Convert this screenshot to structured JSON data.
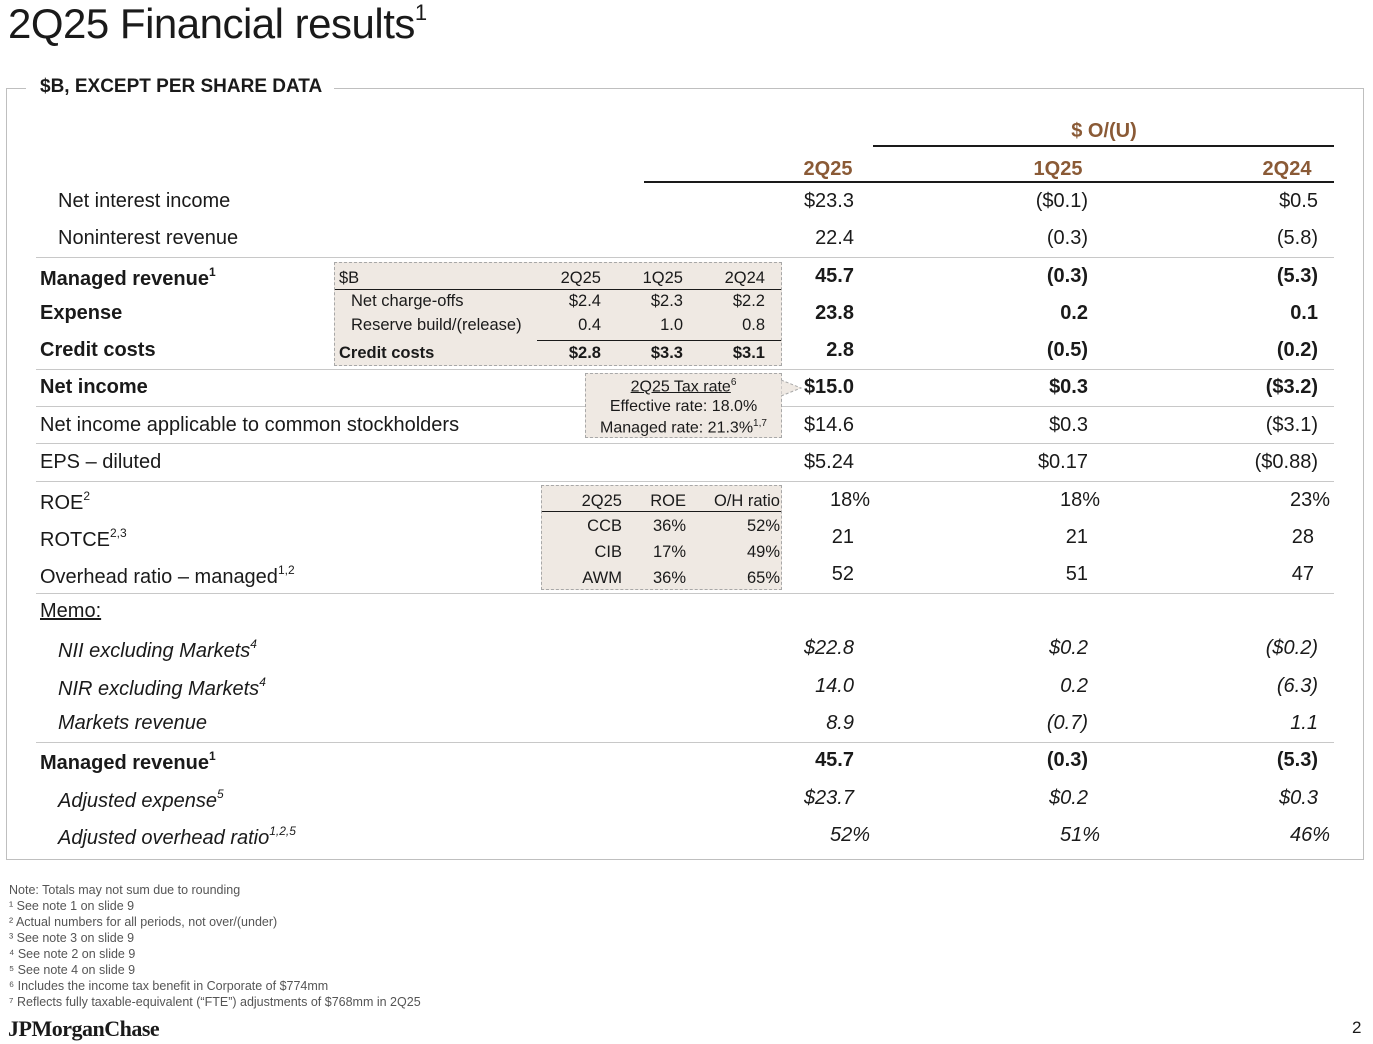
{
  "title": "2Q25 Financial results",
  "title_note": "1",
  "box_label": "$B, EXCEPT PER SHARE DATA",
  "header": {
    "group": "$ O/(U)",
    "col1": "2Q25",
    "col2": "1Q25",
    "col3": "2Q24"
  },
  "rows": [
    {
      "label": "Net interest income",
      "note": "",
      "v1": "$23.3",
      "v2": "($0.1)",
      "v3": "$0.5"
    },
    {
      "label": "Noninterest revenue",
      "note": "",
      "v1": "22.4",
      "v2": "(0.3)",
      "v3": "(5.8)"
    },
    {
      "label": "Managed revenue",
      "note": "1",
      "v1": "45.7",
      "v2": "(0.3)",
      "v3": "(5.3)"
    },
    {
      "label": "Expense",
      "note": "",
      "v1": "23.8",
      "v2": "0.2",
      "v3": "0.1"
    },
    {
      "label": "Credit costs",
      "note": "",
      "v1": "2.8",
      "v2": "(0.5)",
      "v3": "(0.2)"
    },
    {
      "label": "Net income",
      "note": "",
      "v1": "$15.0",
      "v2": "$0.3",
      "v3": "($3.2)"
    },
    {
      "label": "Net income applicable to common stockholders",
      "note": "",
      "v1": "$14.6",
      "v2": "$0.3",
      "v3": "($3.1)"
    },
    {
      "label": "EPS – diluted",
      "note": "",
      "v1": "$5.24",
      "v2": "$0.17",
      "v3": "($0.88)"
    },
    {
      "label": "ROE",
      "note": "2",
      "v1": "18%",
      "v2": "18%",
      "v3": "23%"
    },
    {
      "label": "ROTCE",
      "note": "2,3",
      "v1": "21",
      "v2": "21",
      "v3": "28"
    },
    {
      "label": "Overhead ratio – managed",
      "note": "1,2",
      "v1": "52",
      "v2": "51",
      "v3": "47"
    }
  ],
  "memo_label": "Memo:",
  "memo_rows": [
    {
      "label": "NII excluding Markets",
      "note": "4",
      "v1": "$22.8",
      "v2": "$0.2",
      "v3": "($0.2)"
    },
    {
      "label": "NIR excluding Markets",
      "note": "4",
      "v1": "14.0",
      "v2": "0.2",
      "v3": "(6.3)"
    },
    {
      "label": "Markets revenue",
      "note": "",
      "v1": "8.9",
      "v2": "(0.7)",
      "v3": "1.1"
    },
    {
      "label": "Managed revenue",
      "note": "1",
      "v1": "45.7",
      "v2": "(0.3)",
      "v3": "(5.3)"
    },
    {
      "label": "Adjusted expense",
      "note": "5",
      "v1": "$23.7",
      "v2": "$0.2",
      "v3": "$0.3"
    },
    {
      "label": "Adjusted overhead ratio",
      "note": "1,2,5",
      "v1": "52%",
      "v2": "51%",
      "v3": "46%"
    }
  ],
  "credit_box": {
    "head": [
      "$B",
      "2Q25",
      "1Q25",
      "2Q24"
    ],
    "rows": [
      [
        "Net charge-offs",
        "$2.4",
        "$2.3",
        "$2.2"
      ],
      [
        "Reserve build/(release)",
        "0.4",
        "1.0",
        "0.8"
      ]
    ],
    "total": [
      "Credit costs",
      "$2.8",
      "$3.3",
      "$3.1"
    ]
  },
  "tax_box": {
    "title": "2Q25 Tax rate",
    "title_note": "6",
    "effective": "Effective rate: 18.0%",
    "managed": "Managed rate: 21.3%",
    "managed_note": "1,7"
  },
  "roe_box": {
    "head": [
      "2Q25",
      "ROE",
      "O/H ratio"
    ],
    "rows": [
      [
        "CCB",
        "36%",
        "52%"
      ],
      [
        "CIB",
        "17%",
        "49%"
      ],
      [
        "AWM",
        "36%",
        "65%"
      ]
    ]
  },
  "notes": [
    "Note: Totals may not sum due to rounding",
    "¹ See note 1 on slide 9",
    "² Actual numbers for all periods, not over/(under)",
    "³ See note 3 on slide 9",
    "⁴ See note 2 on slide 9",
    "⁵ See note 4 on slide 9",
    "⁶ Includes the income tax benefit in Corporate of $774mm",
    "⁷ Reflects fully taxable-equivalent (“FTE”) adjustments of $768mm in 2Q25"
  ],
  "logo": "JPMorganChase",
  "page_number": "2",
  "colors": {
    "accent": "#8a5a36",
    "inset_bg": "#efe9e3"
  }
}
